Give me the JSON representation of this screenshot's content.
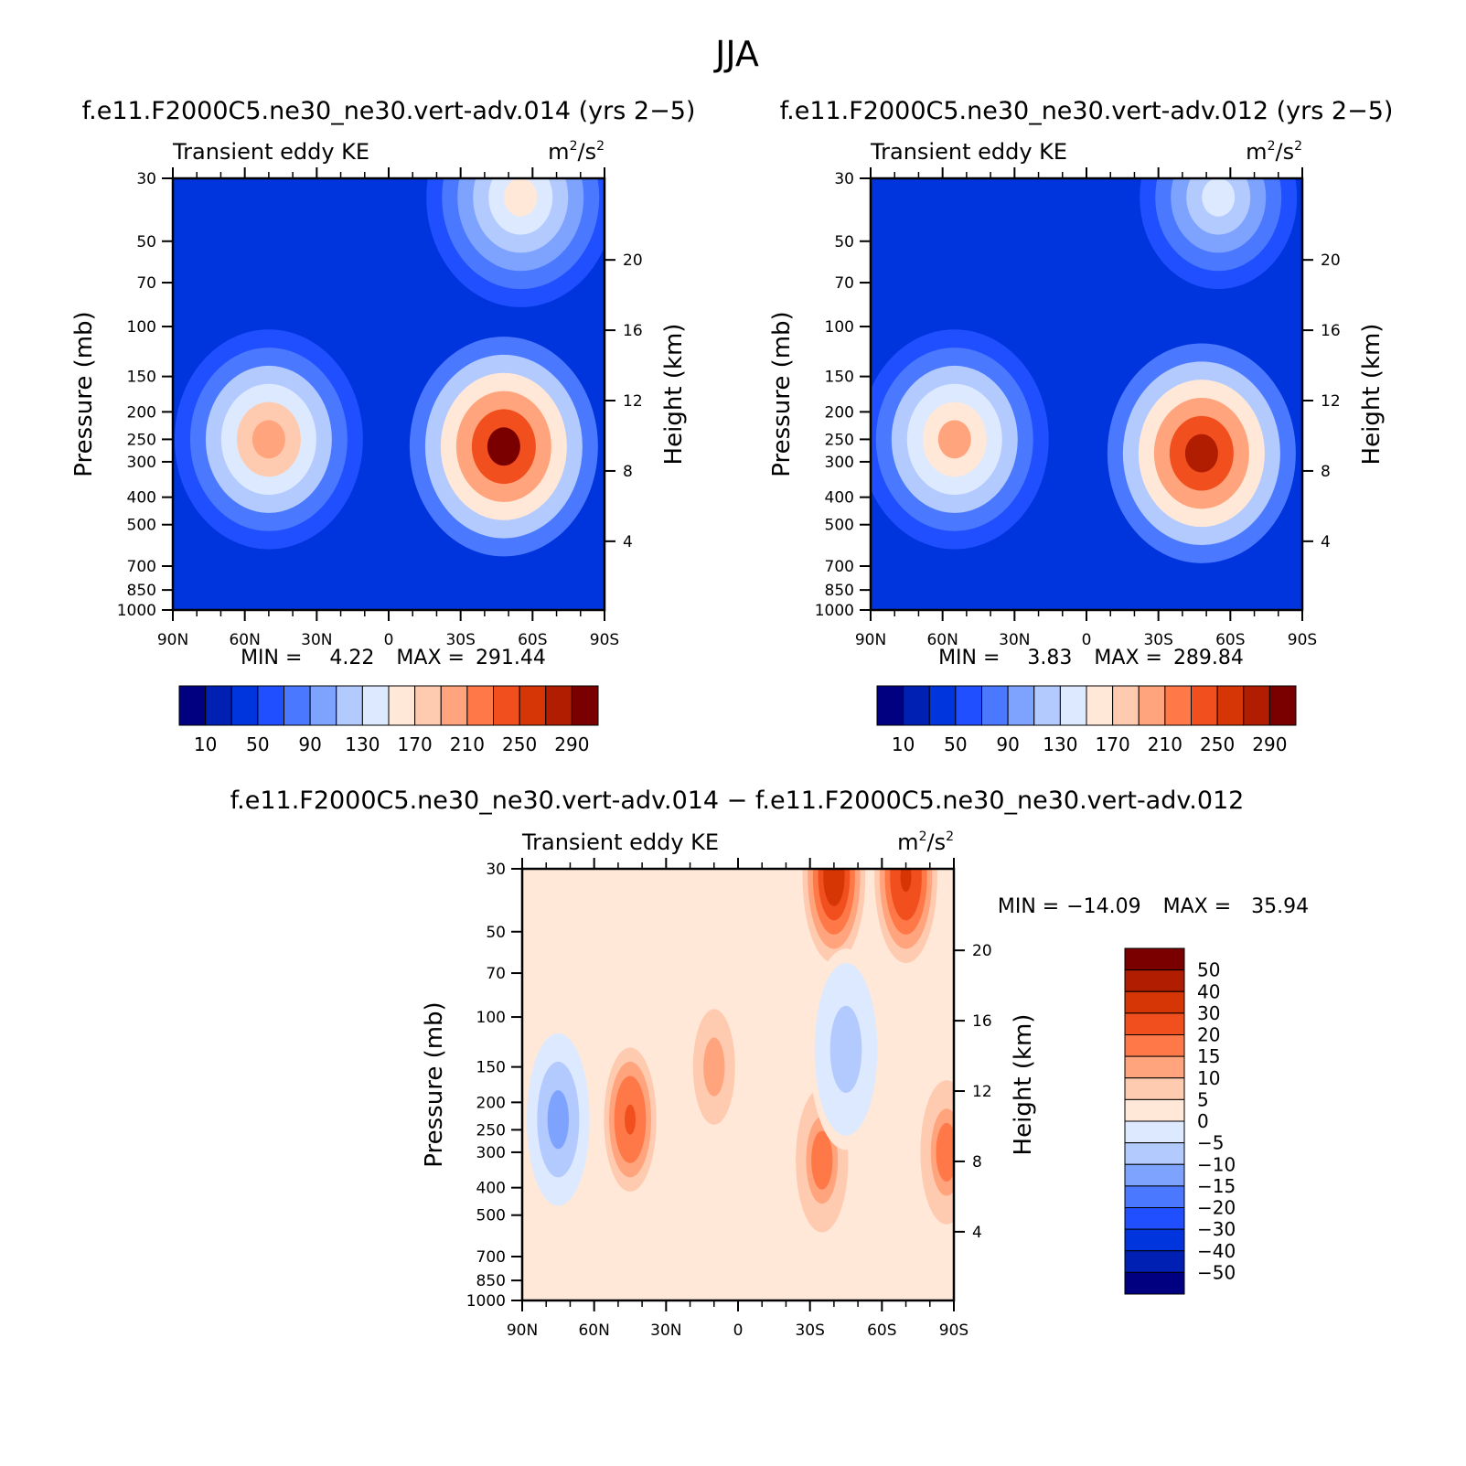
{
  "figure_title": "JJA",
  "chart_data": [
    {
      "type": "heatmap",
      "title": "f.e11.F2000C5.ne30_ne30.vert-adv.014 (yrs 2-5)",
      "left_string": "Transient eddy KE",
      "units": {
        "base": "m",
        "exp": "2",
        "sep": "/s",
        "exp2": "2"
      },
      "ylabel": "Pressure (mb)",
      "y2label": "Height (km)",
      "x_ticks": [
        "90N",
        "60N",
        "30N",
        "0",
        "30S",
        "60S",
        "90S"
      ],
      "x_values": [
        90,
        60,
        30,
        0,
        -30,
        -60,
        -90
      ],
      "y_ticks": [
        "30",
        "50",
        "70",
        "100",
        "150",
        "200",
        "250",
        "300",
        "400",
        "500",
        "700",
        "850",
        "1000"
      ],
      "y_values": [
        30,
        50,
        70,
        100,
        150,
        200,
        250,
        300,
        400,
        500,
        700,
        850,
        1000
      ],
      "y2_ticks": [
        "20",
        "16",
        "12",
        "8",
        "4"
      ],
      "y2_values": [
        20,
        16,
        12,
        8,
        4
      ],
      "stats": {
        "min_label": "MIN =",
        "min": "4.22",
        "max_label": "MAX =",
        "max": "291.44"
      },
      "colorbar_labels": [
        "10",
        "50",
        "90",
        "130",
        "170",
        "210",
        "250",
        "290"
      ],
      "levels": [
        10,
        30,
        50,
        70,
        90,
        110,
        130,
        150,
        170,
        190,
        210,
        230,
        250,
        270,
        290
      ],
      "features": [
        {
          "lat": -48,
          "p": 265,
          "value": 291.44
        },
        {
          "lat": 50,
          "p": 250,
          "value": 205
        },
        {
          "lat": -55,
          "p": 35,
          "value": 155
        }
      ]
    },
    {
      "type": "heatmap",
      "title": "f.e11.F2000C5.ne30_ne30.vert-adv.012 (yrs 2-5)",
      "left_string": "Transient eddy KE",
      "units": {
        "base": "m",
        "exp": "2",
        "sep": "/s",
        "exp2": "2"
      },
      "ylabel": "Pressure (mb)",
      "y2label": "Height (km)",
      "x_ticks": [
        "90N",
        "60N",
        "30N",
        "0",
        "30S",
        "60S",
        "90S"
      ],
      "x_values": [
        90,
        60,
        30,
        0,
        -30,
        -60,
        -90
      ],
      "y_ticks": [
        "30",
        "50",
        "70",
        "100",
        "150",
        "200",
        "250",
        "300",
        "400",
        "500",
        "700",
        "850",
        "1000"
      ],
      "y_values": [
        30,
        50,
        70,
        100,
        150,
        200,
        250,
        300,
        400,
        500,
        700,
        850,
        1000
      ],
      "y2_ticks": [
        "20",
        "16",
        "12",
        "8",
        "4"
      ],
      "y2_values": [
        20,
        16,
        12,
        8,
        4
      ],
      "stats": {
        "min_label": "MIN =",
        "min": "3.83",
        "max_label": "MAX =",
        "max": "289.84"
      },
      "colorbar_labels": [
        "10",
        "50",
        "90",
        "130",
        "170",
        "210",
        "250",
        "290"
      ],
      "levels": [
        10,
        30,
        50,
        70,
        90,
        110,
        130,
        150,
        170,
        190,
        210,
        230,
        250,
        270,
        290
      ],
      "features": [
        {
          "lat": -48,
          "p": 280,
          "value": 289.84
        },
        {
          "lat": 55,
          "p": 250,
          "value": 190
        },
        {
          "lat": -55,
          "p": 35,
          "value": 135
        }
      ]
    },
    {
      "type": "heatmap",
      "title": "f.e11.F2000C5.ne30_ne30.vert-adv.014 - f.e11.F2000C5.ne30_ne30.vert-adv.012",
      "left_string": "Transient eddy KE",
      "units": {
        "base": "m",
        "exp": "2",
        "sep": "/s",
        "exp2": "2"
      },
      "ylabel": "Pressure (mb)",
      "y2label": "Height (km)",
      "x_ticks": [
        "90N",
        "60N",
        "30N",
        "0",
        "30S",
        "60S",
        "90S"
      ],
      "x_values": [
        90,
        60,
        30,
        0,
        -30,
        -60,
        -90
      ],
      "y_ticks": [
        "30",
        "50",
        "70",
        "100",
        "150",
        "200",
        "250",
        "300",
        "400",
        "500",
        "700",
        "850",
        "1000"
      ],
      "y_values": [
        30,
        50,
        70,
        100,
        150,
        200,
        250,
        300,
        400,
        500,
        700,
        850,
        1000
      ],
      "y2_ticks": [
        "20",
        "16",
        "12",
        "8",
        "4"
      ],
      "y2_values": [
        20,
        16,
        12,
        8,
        4
      ],
      "stats": {
        "min_label": "MIN =",
        "min": "-14.09",
        "max_label": "MAX =",
        "max": "35.94"
      },
      "colorbar_labels": [
        "50",
        "40",
        "30",
        "20",
        "15",
        "10",
        "5",
        "0",
        "-5",
        "-10",
        "-15",
        "-20",
        "-30",
        "-40",
        "-50"
      ],
      "levels": [
        -50,
        -40,
        -30,
        -20,
        -15,
        -10,
        -5,
        0,
        5,
        10,
        15,
        20,
        30,
        40,
        50
      ],
      "features": [
        {
          "lat": -40,
          "p": 32,
          "value": 35.94
        },
        {
          "lat": -70,
          "p": 32,
          "value": 33
        },
        {
          "lat": 75,
          "p": 230,
          "value": -14.09
        },
        {
          "lat": 45,
          "p": 230,
          "value": 22
        },
        {
          "lat": 10,
          "p": 150,
          "value": 12
        },
        {
          "lat": -35,
          "p": 320,
          "value": 18
        },
        {
          "lat": -45,
          "p": 130,
          "value": -10
        },
        {
          "lat": -87,
          "p": 300,
          "value": 18
        }
      ]
    }
  ],
  "palette": {
    "panels": [
      "#000080",
      "#001fb3",
      "#0034dc",
      "#1f4fff",
      "#4a78ff",
      "#7ea3ff",
      "#b3caff",
      "#dde9ff",
      "#ffe8d8",
      "#ffcbb0",
      "#ffa47d",
      "#ff7848",
      "#f24f1e",
      "#d63506",
      "#b01d00",
      "#7a0000"
    ],
    "difference": [
      "#000080",
      "#001fb3",
      "#0034dc",
      "#1f4fff",
      "#4a78ff",
      "#7ea3ff",
      "#b3caff",
      "#dde9ff",
      "#ffe8d8",
      "#ffcbb0",
      "#ffa47d",
      "#ff7848",
      "#f24f1e",
      "#d63506",
      "#b01d00",
      "#7a0000"
    ]
  }
}
